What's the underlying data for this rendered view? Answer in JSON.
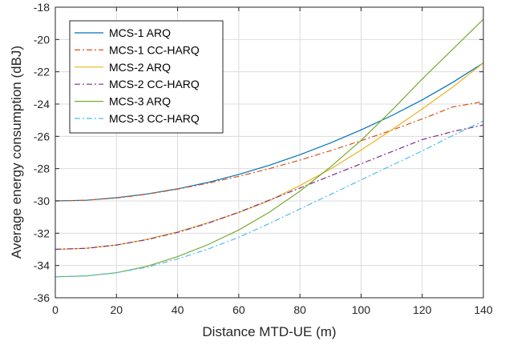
{
  "chart_data": {
    "type": "line",
    "title": "",
    "xlabel": "Distance MTD-UE (m)",
    "ylabel": "Average energy consumption (dBJ)",
    "xlim": [
      0,
      140
    ],
    "ylim": [
      -36,
      -18
    ],
    "xticks": [
      "0",
      "20",
      "40",
      "60",
      "80",
      "100",
      "120",
      "140"
    ],
    "yticks": [
      "-18",
      "-20",
      "-22",
      "-24",
      "-26",
      "-28",
      "-30",
      "-32",
      "-34",
      "-36"
    ],
    "grid": true,
    "legend_position": "top-left",
    "x": [
      0,
      10,
      20,
      30,
      40,
      50,
      60,
      70,
      80,
      90,
      100,
      110,
      120,
      130,
      140
    ],
    "series": [
      {
        "name": "MCS-1 ARQ",
        "style": "solid",
        "color": "#0072BD",
        "values": [
          -30.0,
          -29.96,
          -29.8,
          -29.57,
          -29.25,
          -28.85,
          -28.36,
          -27.79,
          -27.14,
          -26.41,
          -25.6,
          -24.72,
          -23.74,
          -22.65,
          -21.45
        ]
      },
      {
        "name": "MCS-1 CC-HARQ",
        "style": "dashdot",
        "color": "#D95319",
        "values": [
          -30.0,
          -29.96,
          -29.82,
          -29.59,
          -29.27,
          -28.9,
          -28.48,
          -28.0,
          -27.47,
          -26.89,
          -26.27,
          -25.62,
          -24.92,
          -24.18,
          -23.85
        ]
      },
      {
        "name": "MCS-2 ARQ",
        "style": "solid",
        "color": "#EDB120",
        "values": [
          -33.0,
          -32.93,
          -32.73,
          -32.38,
          -31.92,
          -31.35,
          -30.72,
          -29.98,
          -29.05,
          -28.02,
          -26.85,
          -25.6,
          -24.3,
          -22.95,
          -21.45
        ]
      },
      {
        "name": "MCS-2 CC-HARQ",
        "style": "dashdot",
        "color": "#7E2F8E",
        "values": [
          -33.0,
          -32.94,
          -32.73,
          -32.4,
          -31.95,
          -31.38,
          -30.7,
          -29.95,
          -29.2,
          -28.45,
          -27.7,
          -26.95,
          -26.2,
          -25.7,
          -25.3
        ]
      },
      {
        "name": "MCS-3 ARQ",
        "style": "solid",
        "color": "#77AC30",
        "values": [
          -34.7,
          -34.65,
          -34.45,
          -34.05,
          -33.45,
          -32.7,
          -31.8,
          -30.7,
          -29.4,
          -27.9,
          -26.25,
          -24.4,
          -22.45,
          -20.6,
          -18.75
        ]
      },
      {
        "name": "MCS-3 CC-HARQ",
        "style": "dashdot",
        "color": "#4DBEEE",
        "values": [
          -34.7,
          -34.64,
          -34.45,
          -34.1,
          -33.6,
          -32.98,
          -32.25,
          -31.4,
          -30.5,
          -29.6,
          -28.7,
          -27.8,
          -26.9,
          -25.95,
          -25.05
        ]
      }
    ]
  }
}
